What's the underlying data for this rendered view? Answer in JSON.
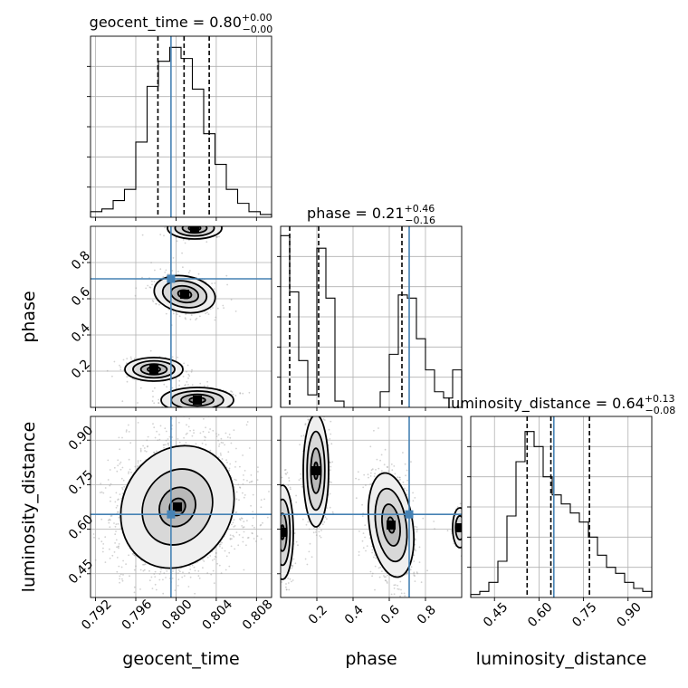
{
  "chart_data": {
    "type": "corner",
    "parameters": [
      "geocent_time",
      "phase",
      "luminosity_distance"
    ],
    "truths": {
      "geocent_time": 0.7995,
      "phase": 0.71,
      "luminosity_distance": 0.65
    },
    "line_color": "#4682b4",
    "axis_ranges": {
      "geocent_time": [
        0.7915,
        0.8095
      ],
      "phase": [
        0.0,
        1.0
      ],
      "luminosity_distance": [
        0.37,
        0.98
      ]
    },
    "ticks": {
      "geocent_time": [
        "0.792",
        "0.796",
        "0.800",
        "0.804",
        "0.808"
      ],
      "phase_x": [
        "0.2",
        "0.4",
        "0.6",
        "0.8"
      ],
      "phase_y": [
        "0.2",
        "0.4",
        "0.6",
        "0.8"
      ],
      "luminosity_distance_x": [
        "0.45",
        "0.60",
        "0.75",
        "0.90"
      ],
      "luminosity_distance_y": [
        "0.45",
        "0.60",
        "0.75",
        "0.90"
      ]
    },
    "axis_labels": {
      "x": [
        "geocent_time",
        "phase",
        "luminosity_distance"
      ],
      "y": [
        "phase",
        "luminosity_distance"
      ]
    },
    "titles": [
      {
        "param": "geocent_time",
        "main": "geocent_time = 0.80",
        "sup": "+0.00",
        "sub": "−0.00"
      },
      {
        "param": "phase",
        "main": "phase = 0.21",
        "sup": "+0.46",
        "sub": "−0.16"
      },
      {
        "param": "luminosity_distance",
        "main": "luminosity_distance = 0.64",
        "sup": "+0.13",
        "sub": "−0.08"
      }
    ],
    "quantiles": {
      "geocent_time": [
        0.7982,
        0.8008,
        0.8033
      ],
      "phase": [
        0.05,
        0.21,
        0.67
      ],
      "luminosity_distance": [
        0.56,
        0.64,
        0.77
      ]
    },
    "histograms": {
      "geocent_time": {
        "range": [
          0.7915,
          0.8095
        ],
        "counts": [
          2,
          3,
          6,
          10,
          27,
          47,
          56,
          61,
          57,
          46,
          30,
          19,
          10,
          5,
          2,
          1
        ],
        "ymax": 65
      },
      "phase": {
        "range": [
          0.0,
          1.0
        ],
        "counts": [
          55,
          37,
          15,
          4,
          51,
          35,
          2,
          0,
          0,
          0,
          0,
          5,
          17,
          36,
          35,
          22,
          12,
          5,
          3,
          12
        ],
        "ymax": 58
      },
      "luminosity_distance": {
        "range": [
          0.37,
          0.98
        ],
        "counts": [
          1,
          2,
          5,
          12,
          27,
          45,
          55,
          50,
          40,
          34,
          31,
          28,
          25,
          20,
          14,
          10,
          8,
          5,
          3,
          2
        ],
        "ymax": 60
      }
    },
    "grid": true
  }
}
